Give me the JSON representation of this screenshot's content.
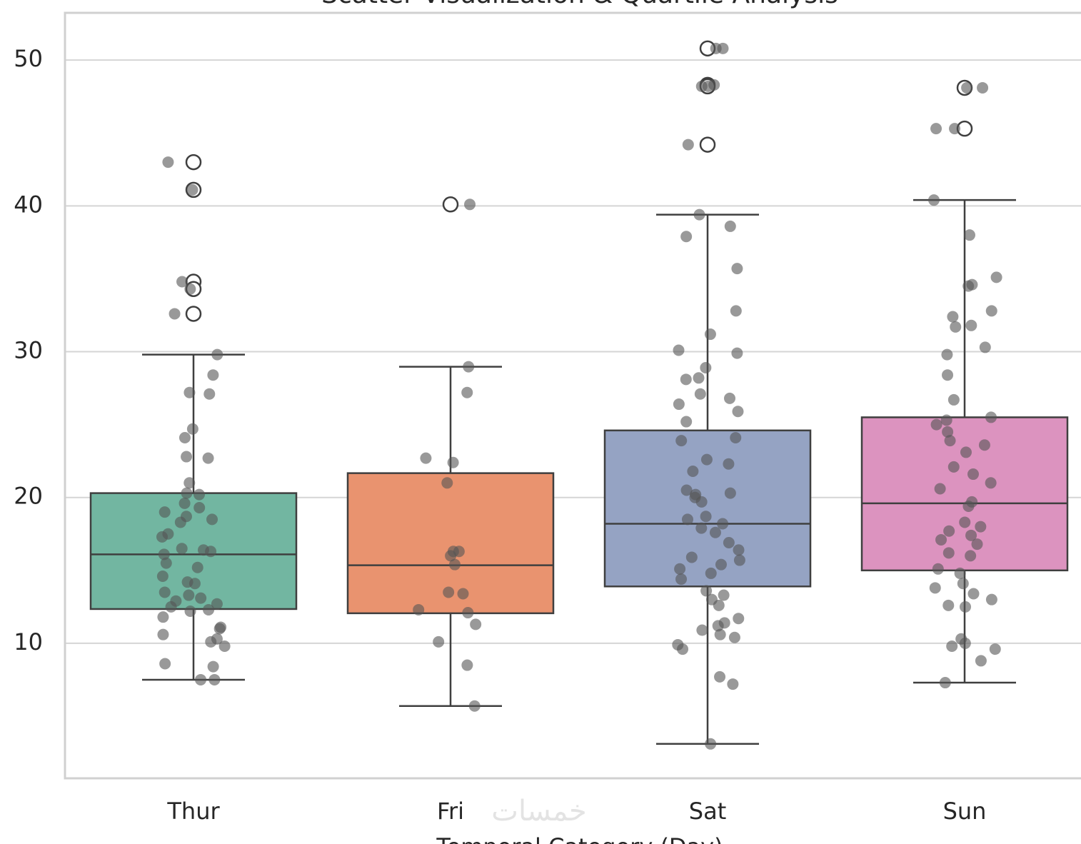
{
  "chart_data": {
    "type": "box",
    "title": "Scatter Visualization & Quartile Analysis",
    "xlabel": "Temporal Category (Day)",
    "categories": [
      "Thur",
      "Fri",
      "Sat",
      "Sun"
    ],
    "colors": [
      "#72b6a1",
      "#e9936f",
      "#95a3c3",
      "#dc93bf"
    ],
    "ylim": [
      0.74,
      53.24
    ],
    "yticks": [
      10,
      20,
      30,
      40,
      50
    ],
    "grid": true,
    "boxes": [
      {
        "whislo": 7.5,
        "q1": 12.35,
        "median": 16.1,
        "q3": 20.3,
        "whishi": 29.8,
        "outliers": [
          43.0,
          41.1,
          34.8,
          34.3,
          32.6
        ]
      },
      {
        "whislo": 5.7,
        "q1": 12.06,
        "median": 15.35,
        "q3": 21.67,
        "whishi": 28.97,
        "outliers": [
          40.1
        ]
      },
      {
        "whislo": 3.1,
        "q1": 13.9,
        "median": 18.2,
        "q3": 24.6,
        "whishi": 39.4,
        "outliers": [
          50.8,
          48.3,
          48.2,
          44.2
        ]
      },
      {
        "whislo": 7.3,
        "q1": 15.0,
        "median": 19.6,
        "q3": 25.5,
        "whishi": 40.4,
        "outliers": [
          48.1,
          45.3
        ]
      }
    ],
    "points": [
      [
        43.0,
        41.1,
        34.8,
        34.3,
        32.6,
        29.8,
        28.4,
        27.1,
        27.2,
        24.7,
        24.1,
        22.8,
        22.7,
        21.0,
        20.3,
        20.2,
        19.6,
        19.3,
        19.0,
        18.7,
        18.5,
        18.3,
        17.5,
        17.3,
        16.5,
        16.4,
        16.3,
        16.1,
        15.5,
        15.2,
        14.6,
        14.2,
        14.1,
        13.5,
        13.3,
        13.1,
        12.9,
        12.7,
        12.5,
        12.3,
        12.2,
        11.8,
        11.1,
        11.0,
        10.6,
        10.3,
        10.1,
        9.8,
        8.6,
        8.4,
        7.5,
        7.5
      ],
      [
        40.1,
        28.97,
        27.2,
        22.7,
        22.4,
        21.0,
        16.3,
        16.3,
        16.0,
        15.4,
        13.5,
        13.4,
        12.3,
        12.1,
        11.3,
        10.1,
        8.5,
        5.7
      ],
      [
        50.8,
        50.8,
        48.2,
        48.2,
        48.3,
        44.2,
        39.4,
        38.6,
        37.9,
        35.7,
        32.8,
        31.2,
        30.1,
        29.9,
        28.9,
        28.2,
        28.1,
        27.1,
        26.8,
        26.4,
        25.9,
        25.2,
        24.1,
        23.9,
        22.6,
        22.3,
        21.8,
        20.5,
        20.3,
        20.2,
        20.0,
        19.7,
        18.7,
        18.5,
        18.2,
        17.9,
        17.6,
        16.9,
        16.4,
        15.9,
        15.7,
        15.4,
        15.1,
        14.8,
        14.4,
        13.6,
        13.3,
        13.0,
        12.6,
        11.7,
        11.4,
        11.2,
        10.9,
        10.6,
        10.4,
        9.9,
        9.6,
        7.7,
        7.2,
        3.1
      ],
      [
        48.1,
        48.1,
        45.3,
        45.3,
        40.4,
        38.0,
        35.1,
        34.6,
        34.5,
        32.8,
        32.4,
        31.8,
        31.7,
        30.3,
        29.8,
        28.4,
        26.7,
        25.5,
        25.3,
        25.0,
        24.5,
        23.9,
        23.6,
        23.1,
        22.1,
        21.6,
        21.0,
        20.6,
        19.7,
        19.4,
        18.3,
        18.0,
        17.7,
        17.4,
        17.1,
        16.8,
        16.2,
        16.0,
        15.1,
        14.8,
        14.1,
        13.8,
        13.4,
        13.0,
        12.6,
        12.5,
        10.3,
        10.0,
        9.8,
        9.6,
        8.8,
        7.3
      ]
    ]
  },
  "watermark": "خمسات"
}
